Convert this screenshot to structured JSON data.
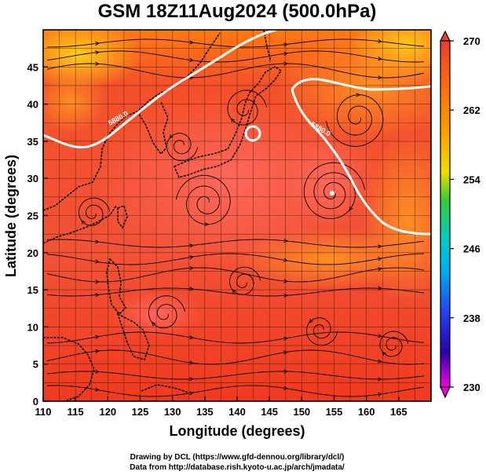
{
  "title": "GSM 18Z11Aug2024 (500.0hPa)",
  "map": {
    "xlabel": "Longitude (degrees)",
    "ylabel": "Latitude  (degrees)",
    "xlim": [
      110,
      170
    ],
    "ylim": [
      0,
      50
    ],
    "xticks": [
      "110",
      "115",
      "120",
      "125",
      "130",
      "135",
      "140",
      "145",
      "150",
      "155",
      "160",
      "165"
    ],
    "yticks": [
      "0",
      "5",
      "10",
      "15",
      "20",
      "25",
      "30",
      "35",
      "40",
      "45"
    ],
    "contour_labels": [
      "5880.0",
      "5880.0"
    ]
  },
  "colorbar": {
    "ticks": [
      "270",
      "262",
      "254",
      "246",
      "238",
      "230"
    ],
    "colors": [
      "#e83c2c",
      "#ff8800",
      "#ffcc00",
      "#33cc33",
      "#00bbee",
      "#2244ee",
      "#2a00aa",
      "#ee00dd"
    ]
  },
  "credits": {
    "line1": "Drawing by DCL (https://www.gfd-dennou.org/library/dcl/)",
    "line2": "Data from http://database.rish.kyoto-u.ac.jp/arch/jmadata/"
  }
}
